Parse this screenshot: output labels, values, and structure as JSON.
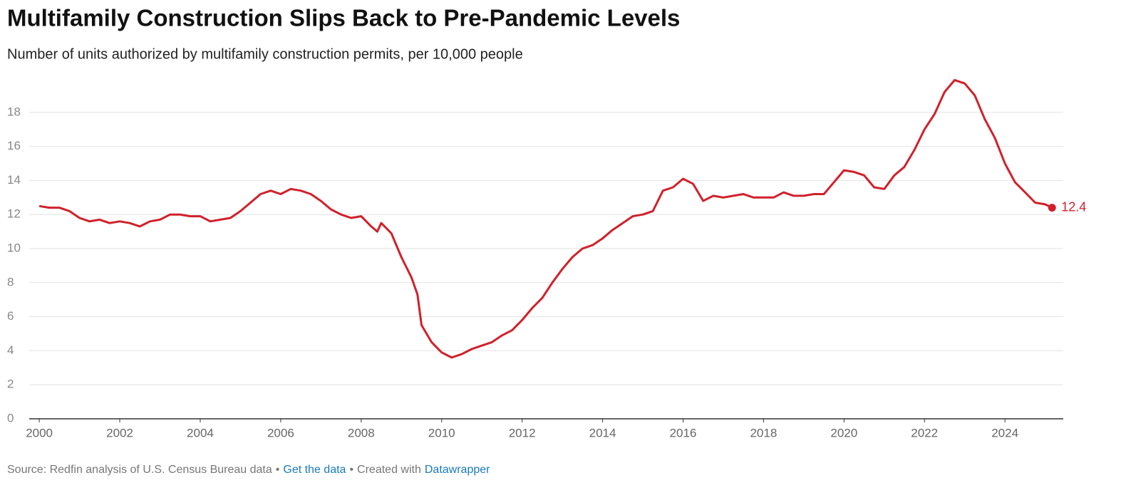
{
  "chart_data": {
    "type": "line",
    "title": "Multifamily Construction Slips Back to Pre-Pandemic Levels",
    "subtitle": "Number of units authorized by multifamily construction permits, per 10,000 people",
    "x": [
      2000,
      2000.25,
      2000.5,
      2000.75,
      2001,
      2001.25,
      2001.5,
      2001.75,
      2002,
      2002.25,
      2002.5,
      2002.75,
      2003,
      2003.25,
      2003.5,
      2003.75,
      2004,
      2004.25,
      2004.5,
      2004.75,
      2005,
      2005.25,
      2005.5,
      2005.75,
      2006,
      2006.25,
      2006.5,
      2006.75,
      2007,
      2007.25,
      2007.5,
      2007.75,
      2008,
      2008.25,
      2008.4,
      2008.5,
      2008.75,
      2009,
      2009.25,
      2009.4,
      2009.5,
      2009.75,
      2010,
      2010.25,
      2010.5,
      2010.75,
      2011,
      2011.25,
      2011.5,
      2011.75,
      2012,
      2012.25,
      2012.5,
      2012.75,
      2013,
      2013.25,
      2013.5,
      2013.75,
      2014,
      2014.25,
      2014.5,
      2014.75,
      2015,
      2015.25,
      2015.5,
      2015.75,
      2016,
      2016.25,
      2016.5,
      2016.75,
      2017,
      2017.25,
      2017.5,
      2017.75,
      2018,
      2018.25,
      2018.5,
      2018.75,
      2019,
      2019.25,
      2019.5,
      2019.75,
      2020,
      2020.25,
      2020.5,
      2020.75,
      2021,
      2021.25,
      2021.5,
      2021.75,
      2022,
      2022.25,
      2022.5,
      2022.75,
      2023,
      2023.25,
      2023.5,
      2023.75,
      2024,
      2024.25,
      2024.5,
      2024.75,
      2025,
      2025.17
    ],
    "series": [
      {
        "color": "#d0212b",
        "values": [
          12.5,
          12.4,
          12.4,
          12.2,
          11.8,
          11.6,
          11.7,
          11.5,
          11.6,
          11.5,
          11.3,
          11.6,
          11.7,
          12.0,
          12.0,
          11.9,
          11.9,
          11.6,
          11.7,
          11.8,
          12.2,
          12.7,
          13.2,
          13.4,
          13.2,
          13.5,
          13.4,
          13.2,
          12.8,
          12.3,
          12.0,
          11.8,
          11.9,
          11.3,
          11.0,
          11.5,
          10.9,
          9.5,
          8.3,
          7.3,
          5.5,
          4.5,
          3.9,
          3.6,
          3.8,
          4.1,
          4.3,
          4.5,
          4.9,
          5.2,
          5.8,
          6.5,
          7.1,
          8.0,
          8.8,
          9.5,
          10.0,
          10.2,
          10.6,
          11.1,
          11.5,
          11.9,
          12.0,
          12.2,
          13.4,
          13.6,
          14.1,
          13.8,
          12.8,
          13.1,
          13.0,
          13.1,
          13.2,
          13.0,
          13.0,
          13.0,
          13.3,
          13.1,
          13.1,
          13.2,
          13.2,
          13.9,
          14.6,
          14.5,
          14.3,
          13.6,
          13.5,
          14.3,
          14.8,
          15.8,
          17.0,
          17.9,
          19.2,
          19.9,
          19.7,
          19.0,
          17.6,
          16.5,
          15.0,
          13.9,
          13.3,
          12.7,
          12.6,
          12.4
        ]
      }
    ],
    "annotation": {
      "index": 103,
      "label": "12.4"
    },
    "xlim": [
      1999.75,
      2025.45
    ],
    "xticks": [
      2000,
      2002,
      2004,
      2006,
      2008,
      2010,
      2012,
      2014,
      2016,
      2018,
      2020,
      2022,
      2024
    ],
    "ylim": [
      0,
      20
    ],
    "yticks": [
      0,
      2,
      4,
      6,
      8,
      10,
      12,
      14,
      16,
      18
    ],
    "grid": true,
    "footer": [
      {
        "text": "Source: Redfin analysis of U.S. Census Bureau data",
        "link": false
      },
      {
        "text": "•",
        "link": false
      },
      {
        "text": "Get the data",
        "link": true
      },
      {
        "text": "•",
        "link": false
      },
      {
        "text": "Created with",
        "link": false
      },
      {
        "text": "Datawrapper",
        "link": true
      }
    ]
  }
}
